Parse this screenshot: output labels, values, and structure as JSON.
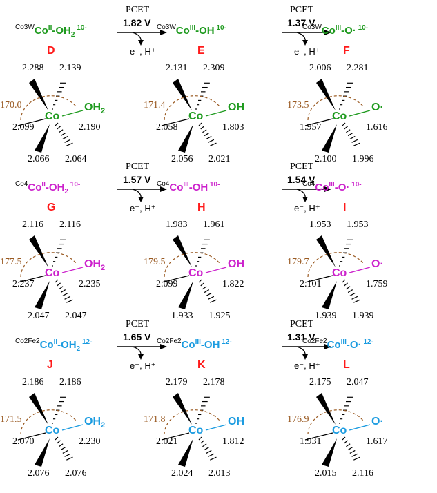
{
  "colors": {
    "green": "#1e9a1e",
    "magenta": "#cc22cc",
    "blue": "#1a9be0",
    "red": "#ff1a1a",
    "angle": "#9a5a22"
  },
  "rows": [
    {
      "color": "#1e9a1e",
      "species": [
        {
          "prefix": "Co3W",
          "metal": "Co",
          "ox": "II",
          "ligand": "-OH",
          "ligand_sub": "2",
          "charge": "10-",
          "letter": "D",
          "axial_ligand": "OH",
          "axial_sub": "2",
          "top_left": "2.288",
          "top_right": "2.139",
          "angle": "170.0",
          "left": "2.099",
          "right": "2.190",
          "bottom_left": "2.066",
          "bottom_right": "2.064"
        },
        {
          "prefix": "Co3W",
          "metal": "Co",
          "ox": "III",
          "ligand": "-OH",
          "ligand_sub": "",
          "charge": "10-",
          "letter": "E",
          "axial_ligand": "OH",
          "axial_sub": "",
          "top_left": "2.131",
          "top_right": "2.309",
          "angle": "171.4",
          "left": "2.058",
          "right": "1.803",
          "bottom_left": "2.056",
          "bottom_right": "2.021"
        },
        {
          "prefix": "Co3W",
          "metal": "Co",
          "ox": "III",
          "ligand": "-O·",
          "ligand_sub": "",
          "charge": "10-",
          "letter": "F",
          "axial_ligand": "O·",
          "axial_sub": "",
          "top_left": "2.006",
          "top_right": "2.281",
          "angle": "173.5",
          "left": "1.957",
          "right": "1.616",
          "bottom_left": "2.100",
          "bottom_right": "1.996"
        }
      ],
      "arrows": [
        {
          "pcet": "PCET",
          "voltage": "1.82 V",
          "products": "e⁻, H⁺"
        },
        {
          "pcet": "PCET",
          "voltage": "1.37 V",
          "products": "e⁻, H⁺"
        }
      ]
    },
    {
      "color": "#cc22cc",
      "species": [
        {
          "prefix": "Co4",
          "metal": "Co",
          "ox": "II",
          "ligand": "-OH",
          "ligand_sub": "2",
          "charge": "10-",
          "letter": "G",
          "axial_ligand": "OH",
          "axial_sub": "2",
          "top_left": "2.116",
          "top_right": "2.116",
          "angle": "177.5",
          "left": "2.237",
          "right": "2.235",
          "bottom_left": "2.047",
          "bottom_right": "2.047"
        },
        {
          "prefix": "Co4",
          "metal": "Co",
          "ox": "III",
          "ligand": "-OH",
          "ligand_sub": "",
          "charge": "10-",
          "letter": "H",
          "axial_ligand": "OH",
          "axial_sub": "",
          "top_left": "1.983",
          "top_right": "1.961",
          "angle": "179.5",
          "left": "2.099",
          "right": "1.822",
          "bottom_left": "1.933",
          "bottom_right": "1.925"
        },
        {
          "prefix": "Co4",
          "metal": "Co",
          "ox": "III",
          "ligand": "-O·",
          "ligand_sub": "",
          "charge": "10-",
          "letter": "I",
          "axial_ligand": "O·",
          "axial_sub": "",
          "top_left": "1.953",
          "top_right": "1.953",
          "angle": "179.7",
          "left": "2.101",
          "right": "1.759",
          "bottom_left": "1.939",
          "bottom_right": "1.939"
        }
      ],
      "arrows": [
        {
          "pcet": "PCET",
          "voltage": "1.57 V",
          "products": "e⁻, H⁺"
        },
        {
          "pcet": "PCET",
          "voltage": "1.54 V",
          "products": "e⁻, H⁺"
        }
      ]
    },
    {
      "color": "#1a9be0",
      "species": [
        {
          "prefix": "Co2Fe2",
          "metal": "Co",
          "ox": "II",
          "ligand": "-OH",
          "ligand_sub": "2",
          "charge": "12-",
          "letter": "J",
          "axial_ligand": "OH",
          "axial_sub": "2",
          "top_left": "2.186",
          "top_right": "2.186",
          "angle": "171.5",
          "left": "2.070",
          "right": "2.230",
          "bottom_left": "2.076",
          "bottom_right": "2.076"
        },
        {
          "prefix": "Co2Fe2",
          "metal": "Co",
          "ox": "III",
          "ligand": "-OH",
          "ligand_sub": "",
          "charge": "12-",
          "letter": "K",
          "axial_ligand": "OH",
          "axial_sub": "",
          "top_left": "2.179",
          "top_right": "2.178",
          "angle": "171.8",
          "left": "2.021",
          "right": "1.812",
          "bottom_left": "2.024",
          "bottom_right": "2.013"
        },
        {
          "prefix": "Co2Fe2",
          "metal": "Co",
          "ox": "III",
          "ligand": "-O·",
          "ligand_sub": "",
          "charge": "12-",
          "letter": "L",
          "axial_ligand": "O·",
          "axial_sub": "",
          "top_left": "2.175",
          "top_right": "2.047",
          "angle": "176.9",
          "left": "1.931",
          "right": "1.617",
          "bottom_left": "2.015",
          "bottom_right": "2.116"
        }
      ],
      "arrows": [
        {
          "pcet": "PCET",
          "voltage": "1.65 V",
          "products": "e⁻, H⁺"
        },
        {
          "pcet": "PCET",
          "voltage": "1.31 V",
          "products": "e⁻, H⁺"
        }
      ]
    }
  ]
}
